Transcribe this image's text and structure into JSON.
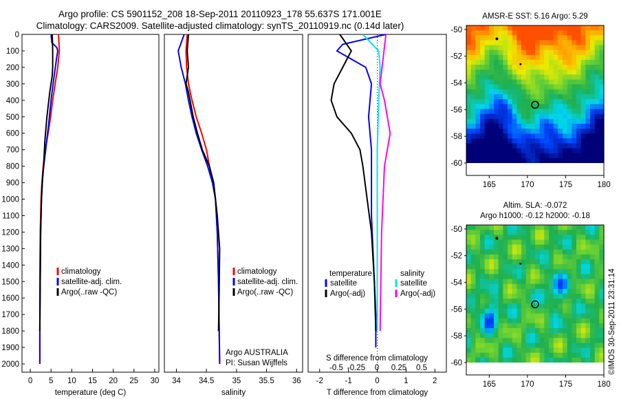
{
  "header": {
    "title_line1": "Argo profile: CS 5901152_208 18-Sep-2011 20110923_178 55.637S 171.001E",
    "title_line2": "Climatology: CARS2009. Satellite-adjusted climatology: synTS_20110919.nc (0.14d later)"
  },
  "colors": {
    "climatology": "#ff0000",
    "satellite": "#0000ff",
    "argo": "#000000",
    "sat_salinity": "#00e5e5",
    "argo_salinity": "#ff00ff"
  },
  "chart_data": [
    {
      "type": "line",
      "xlabel": "temperature (deg C)",
      "ylabel": "",
      "xlim": [
        -2,
        31
      ],
      "ylim": [
        2050,
        0
      ],
      "y_reversed": true,
      "xticks": [
        0,
        5,
        10,
        15,
        20,
        25,
        30
      ],
      "yticks": [
        0,
        100,
        200,
        300,
        400,
        500,
        600,
        700,
        800,
        900,
        1000,
        1100,
        1200,
        1300,
        1400,
        1500,
        1600,
        1700,
        1800,
        1900,
        2000
      ],
      "legend": [
        "climatology",
        "satellite-adj. clim.",
        "Argo(..raw -QC)"
      ],
      "legend_position": "lower-center",
      "series": [
        {
          "name": "climatology",
          "color": "#ff0000",
          "x": [
            6.8,
            7.0,
            6.6,
            6.0,
            5.4,
            4.9,
            4.3,
            3.6,
            3.1,
            2.8,
            2.6,
            2.4,
            2.3,
            2.3
          ],
          "y": [
            0,
            100,
            200,
            300,
            400,
            500,
            600,
            700,
            800,
            900,
            1000,
            1200,
            1500,
            2000
          ]
        },
        {
          "name": "satellite-adj. clim.",
          "color": "#0000ff",
          "x": [
            5.0,
            5.2,
            6.4,
            6.6,
            6.3,
            5.5,
            5.0,
            4.4,
            3.7,
            3.0,
            2.7,
            2.5,
            2.4,
            2.3,
            2.3
          ],
          "y": [
            0,
            50,
            80,
            100,
            150,
            300,
            400,
            550,
            700,
            850,
            1000,
            1200,
            1500,
            1800,
            2000
          ]
        },
        {
          "name": "Argo(..raw -QC)",
          "color": "#000000",
          "x": [
            5.3,
            5.4,
            5.4,
            5.3,
            4.7,
            4.0,
            3.5,
            3.2,
            2.9,
            2.7,
            2.5,
            2.4,
            2.3
          ],
          "y": [
            0,
            100,
            200,
            250,
            350,
            500,
            650,
            800,
            900,
            1000,
            1200,
            1500,
            1800
          ]
        }
      ]
    },
    {
      "type": "line",
      "xlabel": "salinity",
      "xlim": [
        33.8,
        36.1
      ],
      "ylim": [
        2050,
        0
      ],
      "y_reversed": true,
      "xticks": [
        34,
        34.5,
        35,
        35.5,
        36
      ],
      "legend": [
        "climatology",
        "satellite-adj. clim.",
        "Argo(..raw -QC)"
      ],
      "legend_position": "lower-center",
      "annotation_line1": "Argo AUSTRALIA",
      "annotation_line2": "PI: Susan Wijffels",
      "series": [
        {
          "name": "climatology",
          "color": "#ff0000",
          "x": [
            34.18,
            34.16,
            34.17,
            34.2,
            34.26,
            34.33,
            34.42,
            34.5,
            34.55,
            34.6,
            34.65,
            34.68,
            34.7,
            34.72
          ],
          "y": [
            0,
            100,
            200,
            300,
            400,
            500,
            600,
            700,
            800,
            900,
            1000,
            1200,
            1500,
            2000
          ]
        },
        {
          "name": "satellite-adj. clim.",
          "color": "#0000ff",
          "x": [
            34.13,
            34.03,
            34.08,
            34.15,
            34.2,
            34.26,
            34.33,
            34.42,
            34.52,
            34.6,
            34.65,
            34.68,
            34.7,
            34.72
          ],
          "y": [
            0,
            100,
            200,
            300,
            400,
            500,
            600,
            700,
            800,
            900,
            1000,
            1200,
            1500,
            2000
          ]
        },
        {
          "name": "Argo(..raw -QC)",
          "color": "#000000",
          "x": [
            34.2,
            34.18,
            34.2,
            34.16,
            34.2,
            34.28,
            34.35,
            34.43,
            34.55,
            34.62,
            34.68,
            34.72,
            34.71,
            34.7
          ],
          "y": [
            0,
            100,
            200,
            300,
            350,
            500,
            600,
            700,
            800,
            900,
            1100,
            1300,
            1600,
            1800
          ]
        }
      ]
    },
    {
      "type": "line",
      "xlabel": "T difference from climatology",
      "top_label": "S difference from climatology",
      "xlim": [
        -2.4,
        2.4
      ],
      "ylim": [
        2050,
        0
      ],
      "y_reversed": true,
      "xticks": [
        -2,
        -1,
        0,
        1,
        2
      ],
      "top_ticks": [
        "-0.5",
        "-0.25",
        "0",
        "0.25",
        "0.5"
      ],
      "legend_temperature_title": "temperature",
      "legend_salinity_title": "salinity",
      "legend_temperature": [
        "satellite",
        "Argo(-adj)"
      ],
      "legend_salinity": [
        "satellite",
        "Argo(-adj)"
      ],
      "series": [
        {
          "name": "satellite (temperature)",
          "color": "#0000ff",
          "x": [
            0.3,
            -1.2,
            -1.4,
            -0.4,
            -0.2,
            -0.3,
            -0.2,
            -0.2,
            -0.2,
            -0.15,
            -0.1,
            -0.05,
            -0.05
          ],
          "y": [
            0,
            60,
            100,
            200,
            300,
            500,
            700,
            900,
            1100,
            1300,
            1500,
            1700,
            1900
          ]
        },
        {
          "name": "Argo(-adj) (temperature)",
          "color": "#000000",
          "x": [
            -1.3,
            -0.9,
            -1.2,
            -1.5,
            -1.6,
            -1.4,
            -0.9,
            -0.6,
            -0.5,
            -0.35,
            -0.2,
            -0.1,
            -0.05
          ],
          "y": [
            0,
            100,
            200,
            300,
            400,
            500,
            600,
            700,
            800,
            1000,
            1200,
            1500,
            1800
          ]
        },
        {
          "name": "satellite (salinity)",
          "color": "#00e5e5",
          "x": [
            -0.5,
            0.05,
            0.1,
            0.05,
            0.0,
            0.0,
            0.0
          ],
          "y": [
            0,
            100,
            200,
            400,
            700,
            1000,
            1800
          ]
        },
        {
          "name": "Argo(-adj) (salinity)",
          "color": "#ff00ff",
          "x": [
            0.3,
            0.2,
            0.1,
            0.25,
            0.45,
            0.25,
            0.15,
            0.1
          ],
          "y": [
            0,
            150,
            300,
            400,
            600,
            800,
            1200,
            1800
          ]
        }
      ]
    },
    {
      "type": "heatmap",
      "title": "AMSR-E SST: 5.16 Argo: 5.29",
      "xticks": [
        165,
        170,
        175,
        180
      ],
      "yticks": [
        "-50",
        "-52",
        "-54",
        "-56",
        "-58",
        "-60"
      ],
      "xlim": [
        162,
        180
      ],
      "ylim": [
        -60,
        -49.7
      ],
      "float_position": [
        171.0,
        -55.64
      ]
    },
    {
      "type": "heatmap",
      "title_line1": "Altim. SLA: -0.072",
      "title_line2": "Argo h1000: -0.12 h2000: -0.18",
      "xticks": [
        165,
        170,
        175,
        180
      ],
      "yticks": [
        "-50",
        "-52",
        "-54",
        "-56",
        "-58",
        "-60"
      ],
      "xlim": [
        162,
        180
      ],
      "ylim": [
        -60,
        -49.7
      ],
      "float_position": [
        171.0,
        -55.64
      ]
    }
  ],
  "credit": "©IMOS 30-Sep-2011 23:31:14"
}
